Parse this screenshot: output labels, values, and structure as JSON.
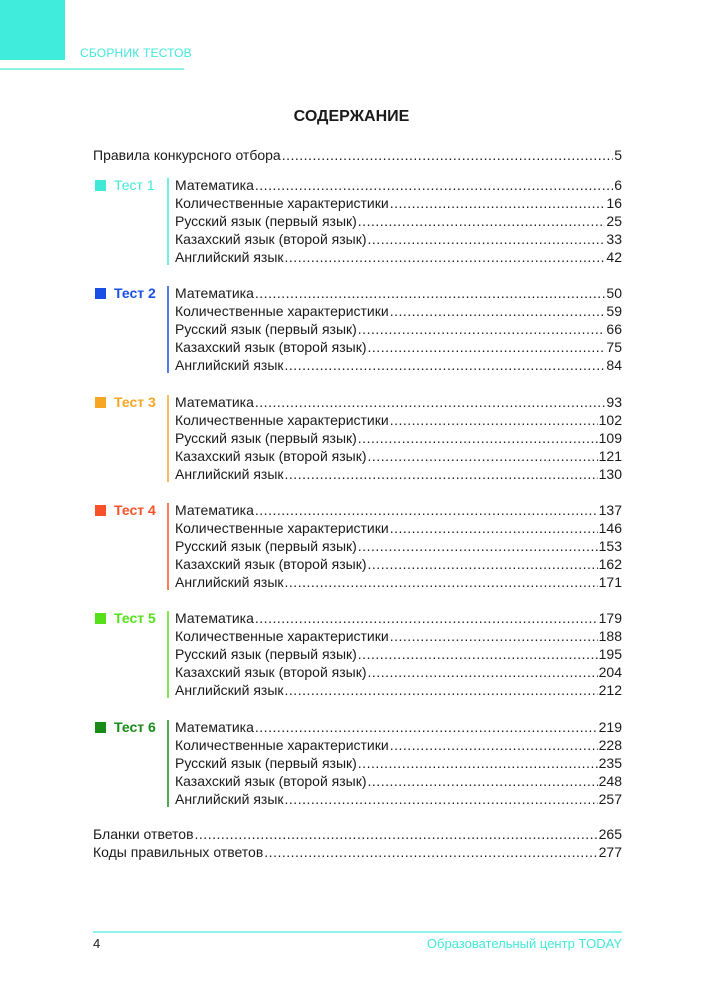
{
  "header": {
    "title": "СБОРНИК ТЕСТОВ"
  },
  "page_title": "СОДЕРЖАНИЕ",
  "intro": {
    "label": "Правила конкурсного отбора",
    "page": "5"
  },
  "tests": [
    {
      "name": "Тест 1",
      "color": "#40e8d8",
      "items": [
        {
          "label": "Математика",
          "page": "6"
        },
        {
          "label": "Количественные характеристики",
          "page": "16"
        },
        {
          "label": "Русский язык (первый язык)",
          "page": "25"
        },
        {
          "label": "Казахский язык (второй язык)",
          "page": "33"
        },
        {
          "label": "Английский язык",
          "page": "42"
        }
      ]
    },
    {
      "name": "Тест 2",
      "color": "#1a4fe6",
      "items": [
        {
          "label": "Математика",
          "page": "50"
        },
        {
          "label": "Количественные характеристики",
          "page": "59"
        },
        {
          "label": "Русский язык (первый язык)",
          "page": "66"
        },
        {
          "label": "Казахский язык (второй язык)",
          "page": "75"
        },
        {
          "label": "Английский язык",
          "page": "84"
        }
      ]
    },
    {
      "name": "Тест 3",
      "color": "#f7a623",
      "items": [
        {
          "label": "Математика",
          "page": "93"
        },
        {
          "label": "Количественные характеристики",
          "page": "102"
        },
        {
          "label": "Русский язык (первый язык)",
          "page": "109"
        },
        {
          "label": "Казахский язык (второй язык)",
          "page": "121"
        },
        {
          "label": "Английский язык",
          "page": "130"
        }
      ]
    },
    {
      "name": "Тест 4",
      "color": "#f8512a",
      "items": [
        {
          "label": "Математика",
          "page": "137"
        },
        {
          "label": "Количественные характеристики",
          "page": "146"
        },
        {
          "label": "Русский язык (первый язык)",
          "page": "153"
        },
        {
          "label": "Казахский язык (второй язык)",
          "page": "162"
        },
        {
          "label": "Английский язык",
          "page": "171"
        }
      ]
    },
    {
      "name": "Тест 5",
      "color": "#55e01a",
      "items": [
        {
          "label": "Математика",
          "page": "179"
        },
        {
          "label": "Количественные характеристики",
          "page": "188"
        },
        {
          "label": "Русский язык (первый язык)",
          "page": "195"
        },
        {
          "label": "Казахский язык (второй язык)",
          "page": "204"
        },
        {
          "label": "Английский язык",
          "page": "212"
        }
      ]
    },
    {
      "name": "Тест 6",
      "color": "#178a17",
      "items": [
        {
          "label": "Математика",
          "page": "219"
        },
        {
          "label": "Количественные характеристики",
          "page": "228"
        },
        {
          "label": "Русский язык (первый язык)",
          "page": "235"
        },
        {
          "label": "Казахский язык (второй язык)",
          "page": "248"
        },
        {
          "label": "Английский язык",
          "page": "257"
        }
      ]
    }
  ],
  "outro": [
    {
      "label": "Бланки ответов",
      "page": "265"
    },
    {
      "label": "Коды правильных ответов",
      "page": "277"
    }
  ],
  "footer": {
    "page_number": "4",
    "publisher": "Образовательный центр TODAY"
  }
}
